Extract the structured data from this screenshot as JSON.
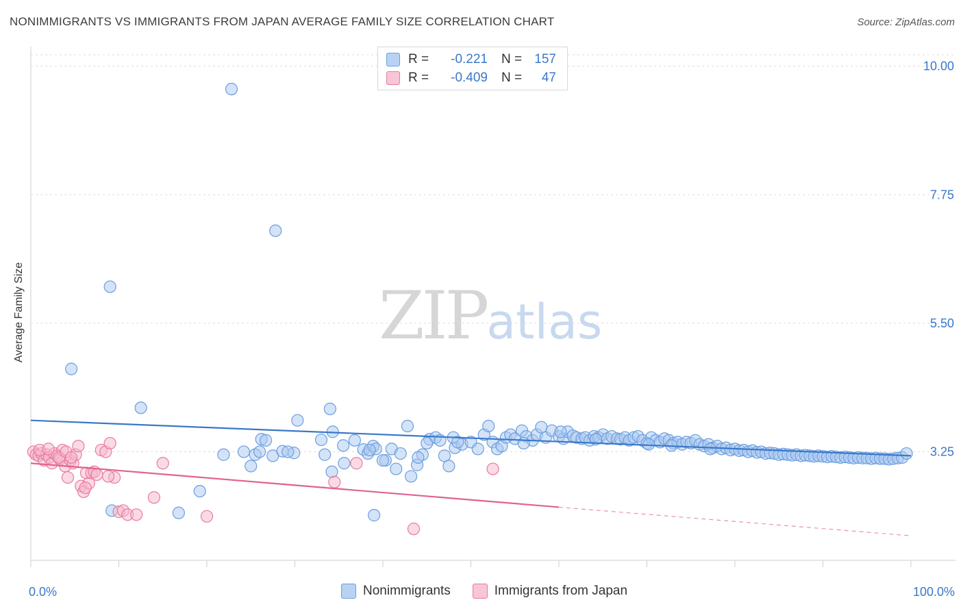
{
  "chart_data": {
    "type": "scatter",
    "title": "NONIMMIGRANTS VS IMMIGRANTS FROM JAPAN AVERAGE FAMILY SIZE CORRELATION CHART",
    "source": "Source: ZipAtlas.com",
    "xlabel": "",
    "ylabel": "Average Family Size",
    "xlim": [
      0,
      100
    ],
    "ylim": [
      1.35,
      10.2
    ],
    "x_tick_labels": [
      "0.0%",
      "100.0%"
    ],
    "y_ticks": [
      3.25,
      5.5,
      7.75,
      10.0
    ],
    "y_tick_labels": [
      "3.25",
      "5.50",
      "7.75",
      "10.00"
    ],
    "watermark": {
      "part1": "ZIP",
      "part2": "atlas"
    },
    "legend": [
      {
        "r_label": "R =",
        "r_value": "-0.221",
        "n_label": "N =",
        "n_value": "157"
      },
      {
        "r_label": "R =",
        "r_value": "-0.409",
        "n_label": "N =",
        "n_value": "47"
      }
    ],
    "series": [
      {
        "name": "Nonimmigrants",
        "color": "#6a9ee0",
        "fill": "#a9c8f0",
        "trend": {
          "x0": 0,
          "y0": 3.8,
          "x1": 100,
          "y1": 3.18
        },
        "points": [
          [
            22.8,
            9.6
          ],
          [
            27.8,
            7.12
          ],
          [
            9.0,
            6.14
          ],
          [
            4.6,
            4.7
          ],
          [
            12.5,
            4.02
          ],
          [
            9.2,
            2.22
          ],
          [
            16.8,
            2.18
          ],
          [
            19.2,
            2.56
          ],
          [
            34.2,
            2.9
          ],
          [
            34.0,
            4.0
          ],
          [
            30.3,
            3.8
          ],
          [
            34.3,
            3.6
          ],
          [
            35.5,
            3.36
          ],
          [
            36.8,
            3.45
          ],
          [
            37.8,
            3.29
          ],
          [
            38.3,
            3.22
          ],
          [
            38.9,
            3.35
          ],
          [
            39.2,
            3.3
          ],
          [
            40.3,
            3.1
          ],
          [
            41.0,
            3.3
          ],
          [
            41.5,
            2.95
          ],
          [
            42.0,
            3.22
          ],
          [
            42.8,
            3.7
          ],
          [
            43.2,
            2.82
          ],
          [
            43.9,
            3.02
          ],
          [
            44.5,
            3.2
          ],
          [
            45.3,
            3.47
          ],
          [
            46.0,
            3.5
          ],
          [
            47.0,
            3.18
          ],
          [
            48.2,
            3.32
          ],
          [
            29.9,
            3.23
          ],
          [
            21.9,
            3.2
          ],
          [
            24.2,
            3.25
          ],
          [
            25.0,
            3.0
          ],
          [
            25.5,
            3.2
          ],
          [
            26.0,
            3.25
          ],
          [
            26.2,
            3.47
          ],
          [
            26.7,
            3.45
          ],
          [
            27.5,
            3.18
          ],
          [
            28.6,
            3.26
          ],
          [
            29.2,
            3.25
          ],
          [
            33.0,
            3.46
          ],
          [
            33.4,
            3.2
          ],
          [
            35.6,
            3.05
          ],
          [
            39.0,
            2.14
          ],
          [
            47.5,
            3.0
          ],
          [
            46.5,
            3.45
          ],
          [
            48.0,
            3.5
          ],
          [
            49.0,
            3.38
          ],
          [
            50.0,
            3.42
          ],
          [
            50.8,
            3.3
          ],
          [
            51.5,
            3.55
          ],
          [
            52.0,
            3.7
          ],
          [
            52.5,
            3.42
          ],
          [
            53.0,
            3.3
          ],
          [
            53.5,
            3.35
          ],
          [
            54.0,
            3.5
          ],
          [
            54.5,
            3.55
          ],
          [
            55.0,
            3.48
          ],
          [
            55.8,
            3.62
          ],
          [
            56.3,
            3.52
          ],
          [
            57.0,
            3.45
          ],
          [
            57.5,
            3.55
          ],
          [
            58.0,
            3.68
          ],
          [
            58.5,
            3.5
          ],
          [
            59.2,
            3.62
          ],
          [
            60.0,
            3.52
          ],
          [
            60.5,
            3.48
          ],
          [
            61.0,
            3.6
          ],
          [
            61.6,
            3.53
          ],
          [
            62.0,
            3.5
          ],
          [
            62.6,
            3.48
          ],
          [
            63.0,
            3.5
          ],
          [
            63.5,
            3.45
          ],
          [
            64.0,
            3.52
          ],
          [
            64.5,
            3.5
          ],
          [
            65.0,
            3.55
          ],
          [
            65.5,
            3.48
          ],
          [
            66.0,
            3.52
          ],
          [
            66.6,
            3.48
          ],
          [
            67.0,
            3.47
          ],
          [
            67.5,
            3.5
          ],
          [
            68.0,
            3.45
          ],
          [
            68.5,
            3.5
          ],
          [
            69.0,
            3.52
          ],
          [
            69.5,
            3.45
          ],
          [
            70.0,
            3.4
          ],
          [
            70.5,
            3.5
          ],
          [
            71.0,
            3.45
          ],
          [
            71.5,
            3.42
          ],
          [
            72.0,
            3.48
          ],
          [
            72.5,
            3.45
          ],
          [
            73.0,
            3.4
          ],
          [
            73.5,
            3.42
          ],
          [
            74.0,
            3.38
          ],
          [
            74.5,
            3.42
          ],
          [
            75.0,
            3.4
          ],
          [
            75.5,
            3.45
          ],
          [
            76.0,
            3.38
          ],
          [
            76.5,
            3.35
          ],
          [
            77.0,
            3.38
          ],
          [
            77.5,
            3.32
          ],
          [
            78.0,
            3.35
          ],
          [
            78.5,
            3.3
          ],
          [
            79.0,
            3.32
          ],
          [
            79.5,
            3.28
          ],
          [
            80.0,
            3.3
          ],
          [
            80.5,
            3.27
          ],
          [
            81.0,
            3.28
          ],
          [
            81.5,
            3.25
          ],
          [
            82.0,
            3.27
          ],
          [
            82.5,
            3.24
          ],
          [
            83.0,
            3.25
          ],
          [
            83.5,
            3.22
          ],
          [
            84.0,
            3.23
          ],
          [
            84.5,
            3.22
          ],
          [
            85.0,
            3.2
          ],
          [
            85.5,
            3.21
          ],
          [
            86.0,
            3.2
          ],
          [
            86.5,
            3.19
          ],
          [
            87.0,
            3.2
          ],
          [
            87.5,
            3.18
          ],
          [
            88.0,
            3.19
          ],
          [
            88.5,
            3.18
          ],
          [
            89.0,
            3.17
          ],
          [
            89.5,
            3.18
          ],
          [
            90.0,
            3.17
          ],
          [
            90.5,
            3.16
          ],
          [
            91.0,
            3.17
          ],
          [
            91.5,
            3.16
          ],
          [
            92.0,
            3.15
          ],
          [
            92.5,
            3.16
          ],
          [
            93.0,
            3.15
          ],
          [
            93.5,
            3.14
          ],
          [
            94.0,
            3.15
          ],
          [
            94.5,
            3.14
          ],
          [
            95.0,
            3.14
          ],
          [
            95.5,
            3.13
          ],
          [
            96.0,
            3.14
          ],
          [
            96.5,
            3.13
          ],
          [
            97.0,
            3.13
          ],
          [
            97.5,
            3.12
          ],
          [
            98.0,
            3.13
          ],
          [
            98.5,
            3.14
          ],
          [
            99.0,
            3.15
          ],
          [
            99.5,
            3.22
          ],
          [
            38.5,
            3.28
          ],
          [
            40.0,
            3.1
          ],
          [
            44.0,
            3.15
          ],
          [
            45.0,
            3.4
          ],
          [
            48.5,
            3.42
          ],
          [
            56.0,
            3.4
          ],
          [
            60.2,
            3.6
          ],
          [
            64.2,
            3.47
          ],
          [
            70.2,
            3.38
          ],
          [
            72.8,
            3.36
          ],
          [
            77.2,
            3.3
          ]
        ]
      },
      {
        "name": "Immigrants from Japan",
        "color": "#e87aa0",
        "fill": "#f5b8cc",
        "trend": {
          "x0": 0,
          "y0": 3.05,
          "x1": 60,
          "y1": 2.28
        },
        "trend_dashed": {
          "x0": 60,
          "y0": 2.28,
          "x1": 100,
          "y1": 1.78
        },
        "points": [
          [
            0.3,
            3.25
          ],
          [
            0.6,
            3.2
          ],
          [
            0.9,
            3.18
          ],
          [
            1.2,
            3.22
          ],
          [
            1.5,
            3.1
          ],
          [
            1.8,
            3.2
          ],
          [
            2.1,
            3.15
          ],
          [
            2.4,
            3.05
          ],
          [
            2.7,
            3.22
          ],
          [
            3.0,
            3.18
          ],
          [
            3.3,
            3.12
          ],
          [
            3.6,
            3.28
          ],
          [
            3.9,
            3.0
          ],
          [
            4.2,
            2.8
          ],
          [
            4.5,
            3.1
          ],
          [
            4.8,
            3.05
          ],
          [
            5.1,
            3.2
          ],
          [
            5.4,
            3.35
          ],
          [
            5.7,
            2.65
          ],
          [
            6.0,
            2.55
          ],
          [
            6.3,
            2.88
          ],
          [
            6.6,
            2.7
          ],
          [
            6.9,
            2.88
          ],
          [
            7.2,
            2.9
          ],
          [
            7.5,
            2.85
          ],
          [
            8.0,
            3.28
          ],
          [
            8.5,
            3.25
          ],
          [
            9.0,
            3.4
          ],
          [
            9.5,
            2.8
          ],
          [
            10.0,
            2.2
          ],
          [
            10.5,
            2.22
          ],
          [
            11.0,
            2.15
          ],
          [
            12.0,
            2.15
          ],
          [
            14.0,
            2.45
          ],
          [
            15.0,
            3.05
          ],
          [
            20.0,
            2.12
          ],
          [
            34.5,
            2.72
          ],
          [
            37.0,
            3.05
          ],
          [
            43.5,
            1.9
          ],
          [
            52.5,
            2.95
          ],
          [
            1.0,
            3.28
          ],
          [
            2.0,
            3.3
          ],
          [
            3.2,
            3.15
          ],
          [
            4.0,
            3.25
          ],
          [
            4.6,
            3.15
          ],
          [
            6.2,
            2.62
          ],
          [
            8.8,
            2.82
          ]
        ]
      }
    ]
  },
  "bottom_legend": [
    {
      "label": "Nonimmigrants"
    },
    {
      "label": "Immigrants from Japan"
    }
  ]
}
